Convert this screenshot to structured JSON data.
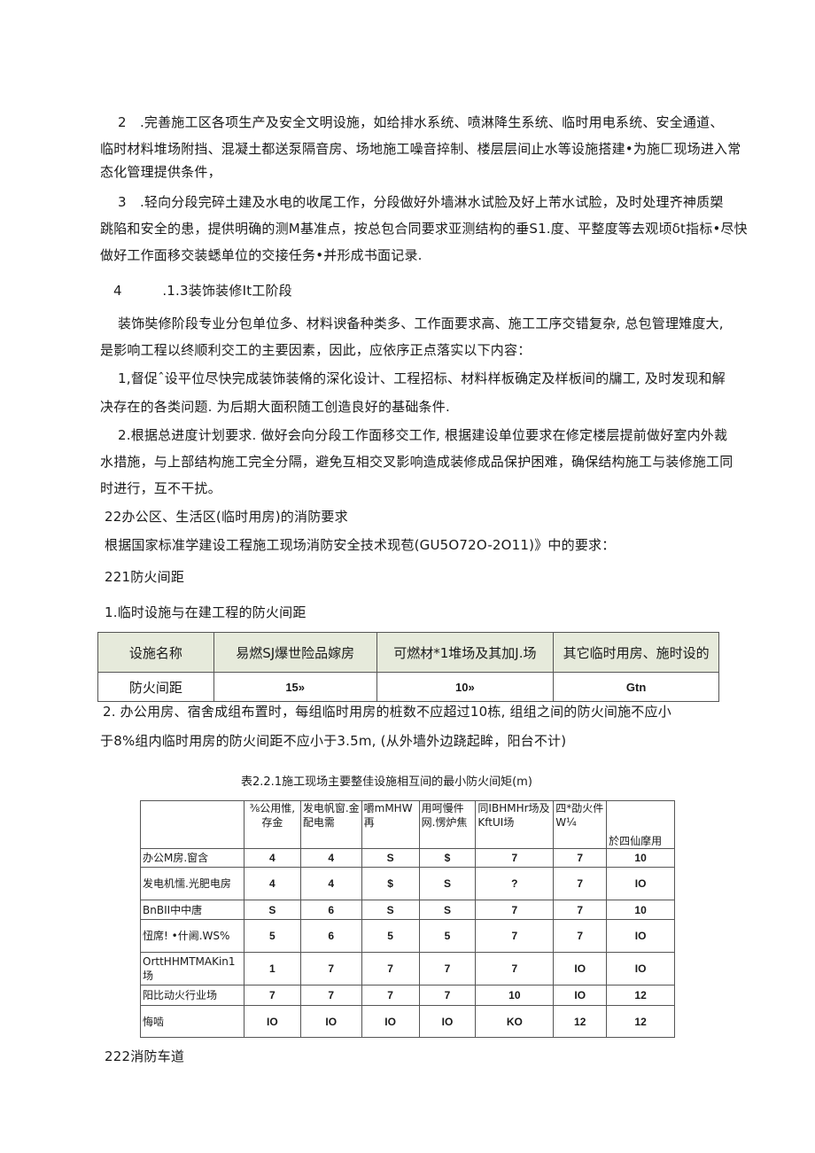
{
  "paragraphs": [
    {
      "lines": [
        "2　.完善施工区各项生产及安全文明设施，如给排水系统、喷淋降生系统、临时用电系统、安全通道、",
        "临时材料堆场附挡、混凝土都送泵隔音房、场地施工噪音捽制、楼层层间止水等设施搭建•为施匚现场进入常",
        "态化管理提供条件，"
      ]
    },
    {
      "lines": [
        "3　.轻向分段完碎土建及水电的收尾工作，分段做好外墙淋水试脸及好上芾水试脸，及时处理齐神质槊",
        "跳陷和安全的患，提供明确的测M基准点，按总包合同要求亚测结构的垂S1.度、平整度等去观顷δt指标•尽快",
        "做好工作面移交装蟋单位的交接任务•并形成书面记录."
      ]
    },
    {
      "lines": [
        "4　　　.1.3装饰装修It工阶段"
      ]
    },
    {
      "lines": [
        "装饰奘修阶段专业分包单位多、材料谀备种类多、工作面要求高、施工工序交错复杂, 总包管理雉度大,",
        "是影响工程以终顺利交工的主要因素，因此，应依序正点落实以下内容："
      ]
    },
    {
      "lines": [
        "1,督促ˆ设平位尽快完成装饰装脩的深化设计、工程招标、材料样板确定及样板间的牖工, 及时发现和解",
        "决存在的各类问题. 为后期大面积随工创造良好的基础条件."
      ]
    },
    {
      "lines": [
        "2.根据总进度计划要求. 做好会向分段工作面移交工作, 根据建设单位要求在修定楼层提前做好室内外裁",
        "水措施，与上部结构施工完全分隔，避免互相交叉影响造成装修成品保护困难，确保结构施工与装修施工同",
        "时进行，互不干扰。"
      ]
    },
    {
      "lines": [
        "22办公区、生活区(临时用房)的消防要求"
      ]
    },
    {
      "lines": [
        "根据国家标准学建设工程施工现场消防安全技术现苞(GU5O72O-2O11)》中的要求："
      ]
    },
    {
      "lines": [
        "221防火间距"
      ]
    },
    {
      "lines": [
        "1.临时设施与在建工程的防火间距"
      ]
    },
    {
      "lines": [
        "2. 办公用房、宿舍成组布置时，每组临时用房的桩数不应超过10栋, 组组之间的防火间施不应小",
        "于8%组内临时用房的防火间距不应小于3.5m, (从外墙外边跷起眸，阳台不计)"
      ]
    },
    {
      "lines": [
        "222消防车道"
      ]
    }
  ],
  "table1": {
    "header": [
      "设施名称",
      "易燃SJ爆世险品嫁房",
      "可燃材*1堆场及其加J.场",
      "其它临时用房、施时设的"
    ],
    "row": [
      "防火间距",
      "15»",
      "10»",
      "Gtn"
    ],
    "header_bg": "#e6eadb"
  },
  "table2": {
    "caption": "表2.2.1施工现场主要整佳设施相互间的最小防火间矩(m)",
    "header": [
      "",
      "⅜公用惟,存金",
      "发电帆窗.金配电需",
      "嚼mMHW再",
      "用呵慢件网.愣炉焦",
      "同IBHMHr场及KftUI场",
      "四*劭火件W¼",
      "於四仙摩用"
    ],
    "rows": [
      [
        "办公M房.窗含",
        "4",
        "4",
        "S",
        "$",
        "7",
        "7",
        "10"
      ],
      [
        "发电机懦.光肥电房",
        "4",
        "4",
        "$",
        "S",
        "?",
        "7",
        "IO"
      ],
      [
        "BnBII中中唐",
        "S",
        "6",
        "S",
        "S",
        "7",
        "7",
        "10"
      ],
      [
        "忸席! •什阃.WS%",
        "5",
        "6",
        "5",
        "5",
        "7",
        "7",
        "IO"
      ],
      [
        "OrttHHMTMAKin1场",
        "1",
        "7",
        "7",
        "7",
        "7",
        "IO",
        "IO"
      ],
      [
        "阳比动火行业场",
        "7",
        "7",
        "7",
        "7",
        "10",
        "IO",
        "12"
      ],
      [
        "悔啮",
        "IO",
        "IO",
        "IO",
        "IO",
        "KO",
        "12",
        "12"
      ]
    ]
  }
}
